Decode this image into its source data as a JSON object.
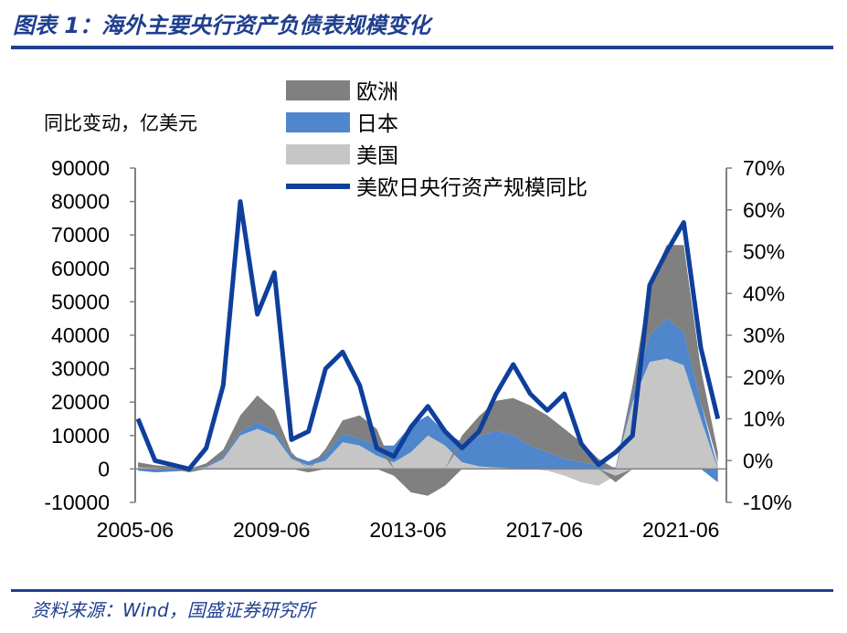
{
  "header": {
    "title": "图表 1：海外主要央行资产负债表规模变化"
  },
  "footer": {
    "source": "资料来源：Wind，国盛证券研究所"
  },
  "colors": {
    "europe": "#808080",
    "japan": "#4f86cc",
    "us": "#c6c6c6",
    "total_line": "#0f3f9c"
  },
  "chart_data": {
    "type": "area",
    "yaxis_left_label": "同比变动，亿美元",
    "ylim_left": [
      -10000,
      90000
    ],
    "ylim_right": [
      -0.1,
      0.7
    ],
    "left_ticks": [
      "-10000",
      "0",
      "10000",
      "20000",
      "30000",
      "40000",
      "50000",
      "60000",
      "70000",
      "80000",
      "90000"
    ],
    "right_ticks": [
      "-10%",
      "0%",
      "10%",
      "20%",
      "30%",
      "40%",
      "50%",
      "60%",
      "70%"
    ],
    "x_tick_labels": [
      "2005-06",
      "2009-06",
      "2013-06",
      "2017-06",
      "2021-06"
    ],
    "x_range": [
      2005.42,
      2022.75
    ],
    "x": [
      2005.5,
      2006.0,
      2006.5,
      2007.0,
      2007.5,
      2008.0,
      2008.5,
      2009.0,
      2009.5,
      2010.0,
      2010.5,
      2011.0,
      2011.5,
      2012.0,
      2012.5,
      2013.0,
      2013.5,
      2014.0,
      2014.5,
      2015.0,
      2015.5,
      2016.0,
      2016.5,
      2017.0,
      2017.5,
      2018.0,
      2018.5,
      2019.0,
      2019.5,
      2020.0,
      2020.5,
      2021.0,
      2021.5,
      2022.0,
      2022.5
    ],
    "series": [
      {
        "name": "欧洲",
        "kind": "area",
        "values": [
          1500,
          800,
          500,
          -500,
          1000,
          2000,
          5000,
          8000,
          6000,
          1000,
          -1000,
          1500,
          4000,
          7000,
          5000,
          -2000,
          -7000,
          -8000,
          -5000,
          2000,
          6000,
          9000,
          11000,
          12000,
          11000,
          9000,
          6000,
          2000,
          -2000,
          3000,
          15000,
          22000,
          26000,
          10000,
          3000
        ]
      },
      {
        "name": "日本",
        "kind": "area",
        "values": [
          -500,
          -1000,
          -800,
          -500,
          200,
          800,
          1000,
          2000,
          1500,
          1000,
          1200,
          2000,
          2500,
          2000,
          3000,
          5000,
          8000,
          6000,
          4000,
          6000,
          9000,
          11000,
          10000,
          7000,
          5000,
          3000,
          2000,
          1000,
          500,
          2000,
          8000,
          12000,
          10000,
          5000,
          -4000
        ]
      },
      {
        "name": "美国",
        "kind": "area",
        "values": [
          500,
          300,
          200,
          100,
          500,
          3000,
          10000,
          12000,
          10000,
          3000,
          1000,
          2500,
          8000,
          7000,
          4000,
          2000,
          5000,
          10000,
          7000,
          2000,
          800,
          400,
          200,
          0,
          -500,
          -2000,
          -4000,
          -5000,
          -2000,
          20000,
          32000,
          33000,
          31000,
          15000,
          2000
        ]
      },
      {
        "name": "美欧日央行资产规模同比",
        "kind": "line",
        "axis": "right",
        "values": [
          0.1,
          0.0,
          -0.01,
          -0.02,
          0.03,
          0.18,
          0.62,
          0.35,
          0.45,
          0.05,
          0.07,
          0.22,
          0.26,
          0.18,
          0.03,
          0.01,
          0.08,
          0.13,
          0.07,
          0.03,
          0.07,
          0.16,
          0.23,
          0.16,
          0.12,
          0.16,
          0.04,
          -0.01,
          0.02,
          0.06,
          0.42,
          0.5,
          0.57,
          0.27,
          0.1
        ]
      }
    ]
  }
}
